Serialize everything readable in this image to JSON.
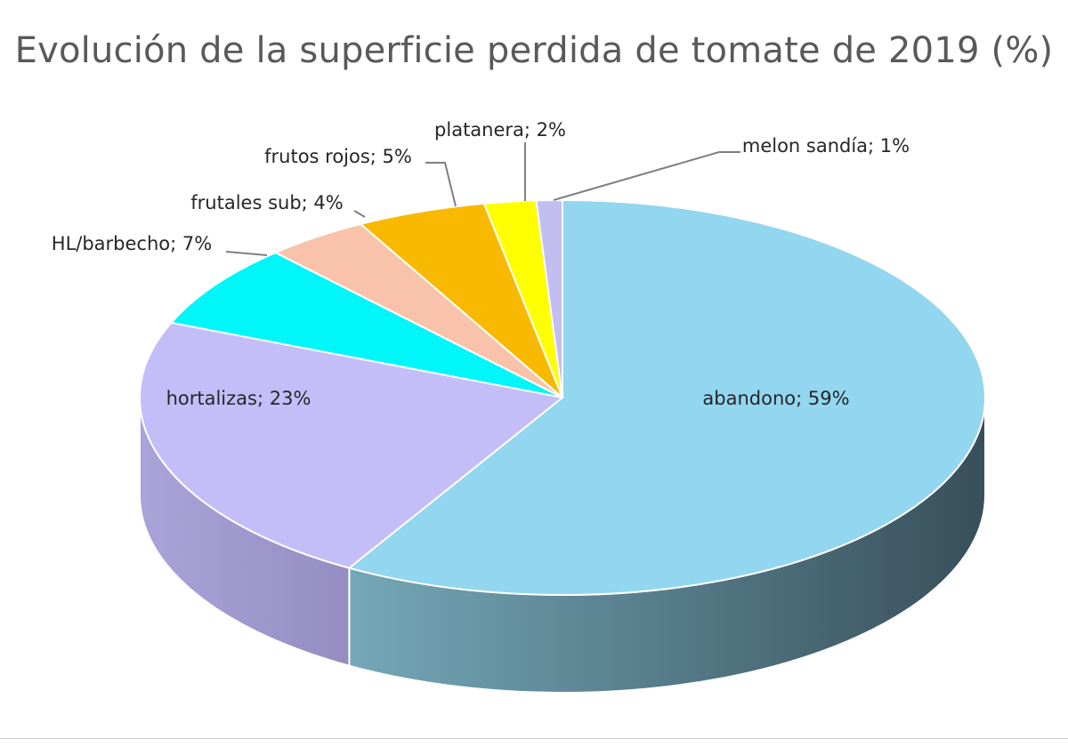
{
  "chart_data": {
    "type": "pie",
    "style": "3d",
    "title": "Evolución de la superficie perdida de tomate de 2019 (%)",
    "start": "top, clockwise",
    "slices": [
      {
        "label": "abandono; 59%",
        "name": "abandono",
        "value": 59,
        "color": "#93d6ef",
        "side_colors": [
          "#74a8b8",
          "#384f5a"
        ]
      },
      {
        "label": "hortalizas; 23%",
        "name": "hortalizas",
        "value": 23,
        "color": "#c3bef8",
        "side_colors": [
          "#aaa4da",
          "#958dc2"
        ]
      },
      {
        "label": "HL/barbecho; 7%",
        "name": "HL/barbecho",
        "value": 7,
        "color": "#00f6f8"
      },
      {
        "label": "frutales sub; 4%",
        "name": "frutales sub",
        "value": 4,
        "color": "#f8c3aa"
      },
      {
        "label": "frutos rojos; 5%",
        "name": "frutos rojos",
        "value": 5,
        "color": "#f8b900"
      },
      {
        "label": "platanera; 2%",
        "name": "platanera",
        "value": 2,
        "color": "#ffff00"
      },
      {
        "label": "melon sandía; 1%",
        "name": "melon sandía",
        "value": 1,
        "color": "#c3bef2"
      }
    ]
  }
}
